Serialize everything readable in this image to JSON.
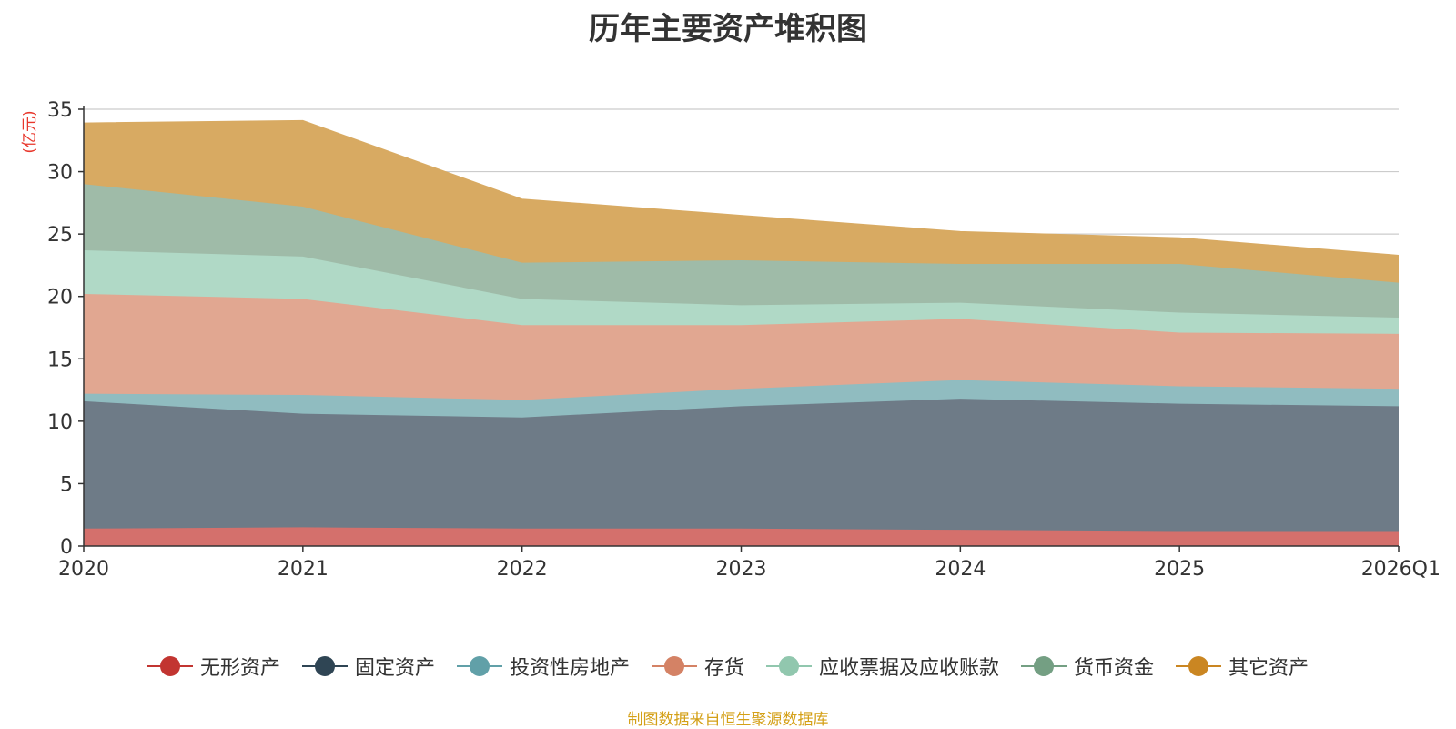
{
  "chart_data": {
    "type": "area",
    "stacked": true,
    "title": "历年主要资产堆积图",
    "ylabel": "(亿元)",
    "xlabel": "",
    "categories": [
      "2020",
      "2021",
      "2022",
      "2023",
      "2024",
      "2025",
      "2026Q1"
    ],
    "ylim": [
      0,
      35
    ],
    "yticks": [
      0,
      5,
      10,
      15,
      20,
      25,
      30,
      35
    ],
    "grid": true,
    "legend_position": "bottom",
    "series": [
      {
        "name": "无形资产",
        "color": "#c23531",
        "fill": "#d4706c",
        "values": [
          1.4,
          1.5,
          1.4,
          1.4,
          1.3,
          1.2,
          1.2
        ]
      },
      {
        "name": "固定资产",
        "color": "#2f4554",
        "fill": "#6e7b87",
        "values": [
          10.2,
          9.1,
          8.9,
          9.8,
          10.5,
          10.2,
          10.0
        ]
      },
      {
        "name": "投资性房地产",
        "color": "#61a0a8",
        "fill": "#90bcc0",
        "values": [
          0.6,
          1.5,
          1.4,
          1.4,
          1.5,
          1.4,
          1.4
        ]
      },
      {
        "name": "存货",
        "color": "#d48265",
        "fill": "#e1a791",
        "values": [
          8.0,
          7.7,
          6.0,
          5.1,
          4.9,
          4.3,
          4.4
        ]
      },
      {
        "name": "应收票据及应收账款",
        "color": "#91c7ae",
        "fill": "#b0d9c6",
        "values": [
          3.5,
          3.4,
          2.1,
          1.6,
          1.3,
          1.6,
          1.3
        ]
      },
      {
        "name": "货币资金",
        "color": "#749f83",
        "fill": "#9fbba8",
        "values": [
          5.3,
          4.0,
          2.9,
          3.6,
          3.1,
          3.9,
          2.8
        ]
      },
      {
        "name": "其它资产",
        "color": "#ca8622",
        "fill": "#d8aa62",
        "values": [
          4.9,
          6.9,
          5.1,
          3.6,
          2.6,
          2.1,
          2.2
        ]
      }
    ]
  },
  "source_note": "制图数据来自恒生聚源数据库"
}
